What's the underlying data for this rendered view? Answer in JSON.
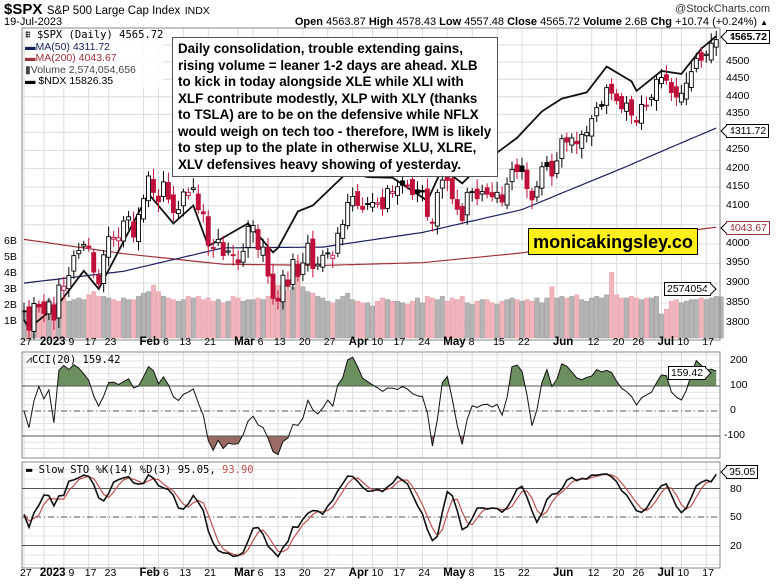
{
  "header": {
    "symbol": "$SPX",
    "name": "S&P 500 Large Cap Index",
    "exchange": "INDX",
    "watermark": "@StockCharts.com",
    "date": "19-Jul-2023",
    "open_label": "Open",
    "open": "4563.87",
    "high_label": "High",
    "high": "4578.43",
    "low_label": "Low",
    "low": "4557.48",
    "close_label": "Close",
    "close": "4565.72",
    "volume_label": "Volume",
    "volume": "2.6B",
    "chg_label": "Chg",
    "chg": "+10.74 (+0.24%)",
    "chg_arrow": "▲"
  },
  "legend": {
    "price": "$SPX (Daily) 4565.72",
    "ma50": "MA(50) 4311.72",
    "ma200": "MA(200) 4043.67",
    "volume": "Volume 2,574,054,656",
    "ndx": "$NDX 15826.35"
  },
  "annotation": {
    "lines": [
      "Daily consolidation, trouble extending gains,",
      "rising volume = leaner 1-2 days are ahead. XLB",
      "to kick in today alongside XLE while XLI with",
      "XLF contribute modestly,  XLP with XLY (thanks",
      "to TSLA) are to be on the defensive while NFLX",
      "would weigh on tech too - therefore, IWM is likely",
      "to step up to the plate in otherwise XLU, XLRE,",
      "XLV defensives heavy showing of yesterday."
    ]
  },
  "brand": "monicakingsley.co",
  "tags": {
    "price": "4565.72",
    "ma50": "4311.72",
    "ma200": "4043.67",
    "volume": "2574054",
    "cci": "159.42",
    "sto": "95.05"
  },
  "cci_legend": "CCI(20) 159.42",
  "sto_legend": {
    "text": "Slow STO %K(14) %D(3) 95.05,",
    "d": "93.90"
  },
  "colors": {
    "up": "#000000",
    "down": "#c0103a",
    "ma50": "#1a1f5e",
    "ma200": "#a0303a",
    "vol_up": "#b4b4b4",
    "vol_down": "#f0b4bc",
    "cci_pos": "#6b8f5e",
    "cci_neg": "#9a6a64",
    "d_line": "#c0504d"
  },
  "chart_data": {
    "type": "candlestick",
    "title": "$SPX S&P 500 Large Cap Index",
    "price_ticks": [
      3800,
      3850,
      3900,
      3950,
      4000,
      4050,
      4100,
      4150,
      4200,
      4250,
      4300,
      4350,
      4400,
      4450,
      4500,
      4550
    ],
    "price_tick_labels": [
      "3800",
      "3850",
      "3900",
      "3950",
      "4000",
      "",
      "4100",
      "4150",
      "4200",
      "4250",
      "",
      "4350",
      "4400",
      "4450",
      "4500",
      ""
    ],
    "volume_ticks": [
      [
        "1B",
        1
      ],
      [
        "2B",
        2
      ],
      [
        "3B",
        3
      ],
      [
        "4B",
        4
      ],
      [
        "5B",
        5
      ],
      [
        "6B",
        6
      ]
    ],
    "x_labels": [
      [
        0,
        "27",
        false
      ],
      [
        4,
        "2023",
        true
      ],
      [
        8,
        "9",
        false
      ],
      [
        13,
        "17",
        false
      ],
      [
        17,
        "23",
        false
      ],
      [
        24,
        "Feb",
        true
      ],
      [
        27,
        "6",
        false
      ],
      [
        32,
        "13",
        false
      ],
      [
        37,
        "21",
        false
      ],
      [
        43,
        "Mar",
        true
      ],
      [
        46,
        "6",
        false
      ],
      [
        51,
        "13",
        false
      ],
      [
        56,
        "20",
        false
      ],
      [
        61,
        "27",
        false
      ],
      [
        66,
        "Apr",
        true
      ],
      [
        70,
        "10",
        false
      ],
      [
        75,
        "17",
        false
      ],
      [
        80,
        "24",
        false
      ],
      [
        85,
        "May",
        true
      ],
      [
        90,
        "8",
        false
      ],
      [
        95,
        "15",
        false
      ],
      [
        100,
        "22",
        false
      ],
      [
        107,
        "Jun",
        true
      ],
      [
        114,
        "12",
        false
      ],
      [
        119,
        "20",
        false
      ],
      [
        123,
        "26",
        false
      ],
      [
        128,
        "Jul",
        true
      ],
      [
        132,
        "10",
        false
      ],
      [
        137,
        "17",
        false
      ]
    ],
    "close": [
      3829,
      3783,
      3849,
      3840,
      3824,
      3853,
      3808,
      3895,
      3892,
      3919,
      3970,
      3983,
      3999,
      3991,
      3928,
      3898,
      3972,
      4019,
      4017,
      4016,
      4060,
      4071,
      4018,
      4077,
      4119,
      4180,
      4136,
      4111,
      4164,
      4118,
      4082,
      4090,
      4137,
      4136,
      4148,
      4090,
      4079,
      3997,
      3991,
      4012,
      3970,
      3982,
      3970,
      3951,
      3981,
      4046,
      4048,
      3986,
      3992,
      3918,
      3862,
      3855,
      3920,
      3892,
      3960,
      3917,
      3951,
      4002,
      3937,
      3948,
      3971,
      3977,
      3971,
      4028,
      4051,
      4109,
      4125,
      4101,
      4091,
      4105,
      4109,
      4108,
      4092,
      4146,
      4138,
      4151,
      4155,
      4154,
      4130,
      4133,
      4137,
      4072,
      4056,
      4136,
      4169,
      4168,
      4119,
      4091,
      4061,
      4136,
      4138,
      4119,
      4138,
      4131,
      4124,
      4136,
      4110,
      4158,
      4198,
      4192,
      4192,
      4146,
      4116,
      4151,
      4205,
      4206,
      4180,
      4221,
      4282,
      4273,
      4284,
      4268,
      4294,
      4299,
      4338,
      4369,
      4373,
      4426,
      4410,
      4389,
      4366,
      4382,
      4348,
      4328,
      4378,
      4376,
      4397,
      4450,
      4455,
      4447,
      4412,
      4399,
      4410,
      4439,
      4472,
      4510,
      4505,
      4523,
      4555,
      4565.72
    ],
    "volume_b": [
      1.6,
      1.9,
      1.8,
      1.9,
      2.3,
      2.4,
      2.2,
      2.5,
      2.5,
      2.3,
      2.4,
      2.5,
      2.4,
      2.7,
      2.9,
      2.6,
      2.6,
      2.5,
      2.4,
      2.3,
      2.5,
      2.4,
      2.4,
      2.6,
      2.8,
      2.9,
      3.3,
      2.9,
      2.6,
      2.5,
      2.4,
      2.3,
      2.4,
      2.6,
      2.5,
      2.6,
      2.4,
      2.5,
      2.3,
      2.4,
      2.2,
      2.3,
      2.6,
      2.5,
      2.3,
      2.4,
      2.4,
      2.5,
      2.4,
      2.6,
      3.0,
      3.3,
      3.1,
      3.0,
      3.2,
      4.8,
      3.2,
      2.9,
      2.8,
      2.6,
      2.5,
      2.3,
      2.2,
      2.4,
      2.6,
      2.8,
      2.4,
      2.3,
      2.2,
      2.2,
      2.0,
      2.3,
      2.5,
      2.4,
      2.3,
      2.3,
      2.2,
      2.1,
      2.3,
      2.5,
      2.2,
      2.6,
      2.5,
      2.4,
      2.6,
      2.3,
      2.5,
      2.4,
      2.6,
      2.2,
      2.1,
      2.3,
      2.4,
      2.4,
      2.2,
      2.1,
      2.3,
      2.4,
      2.5,
      2.4,
      2.3,
      2.4,
      2.3,
      2.5,
      2.2,
      2.5,
      3.2,
      2.5,
      2.6,
      2.5,
      2.6,
      2.7,
      2.4,
      2.3,
      2.5,
      2.6,
      2.5,
      2.7,
      4.1,
      2.7,
      2.5,
      2.5,
      2.6,
      2.5,
      2.4,
      2.5,
      2.5,
      2.6,
      1.5,
      1.8,
      2.3,
      2.4,
      2.2,
      2.3,
      2.4,
      2.4,
      2.5,
      2.4,
      2.5,
      2.6,
      2.57
    ],
    "ma50": [
      [
        0,
        3900
      ],
      [
        20,
        3930
      ],
      [
        40,
        3990
      ],
      [
        60,
        3992
      ],
      [
        80,
        4030
      ],
      [
        100,
        4090
      ],
      [
        120,
        4200
      ],
      [
        139,
        4311.72
      ]
    ],
    "ma200": [
      [
        0,
        4012
      ],
      [
        20,
        3975
      ],
      [
        40,
        3948
      ],
      [
        60,
        3945
      ],
      [
        80,
        3952
      ],
      [
        100,
        3977
      ],
      [
        120,
        4012
      ],
      [
        139,
        4043.67
      ]
    ],
    "ndx": [
      [
        0,
        10800
      ],
      [
        1,
        10680
      ],
      [
        7,
        11040
      ],
      [
        12,
        11540
      ],
      [
        15,
        11260
      ],
      [
        21,
        12160
      ],
      [
        25,
        12800
      ],
      [
        30,
        12300
      ],
      [
        34,
        12600
      ],
      [
        37,
        11930
      ],
      [
        45,
        12300
      ],
      [
        50,
        11830
      ],
      [
        51,
        11900
      ],
      [
        55,
        12500
      ],
      [
        58,
        12600
      ],
      [
        65,
        13180
      ],
      [
        69,
        13090
      ],
      [
        74,
        13080
      ],
      [
        81,
        12680
      ],
      [
        84,
        13250
      ],
      [
        88,
        12980
      ],
      [
        92,
        13330
      ],
      [
        99,
        13800
      ],
      [
        104,
        14300
      ],
      [
        108,
        14550
      ],
      [
        113,
        14670
      ],
      [
        117,
        15190
      ],
      [
        122,
        14890
      ],
      [
        123,
        14700
      ],
      [
        128,
        15100
      ],
      [
        132,
        15040
      ],
      [
        136,
        15560
      ],
      [
        139,
        15826.35
      ]
    ],
    "cci_levels": [
      200,
      100,
      0,
      -100
    ],
    "sto_levels": [
      80,
      50,
      20
    ]
  }
}
